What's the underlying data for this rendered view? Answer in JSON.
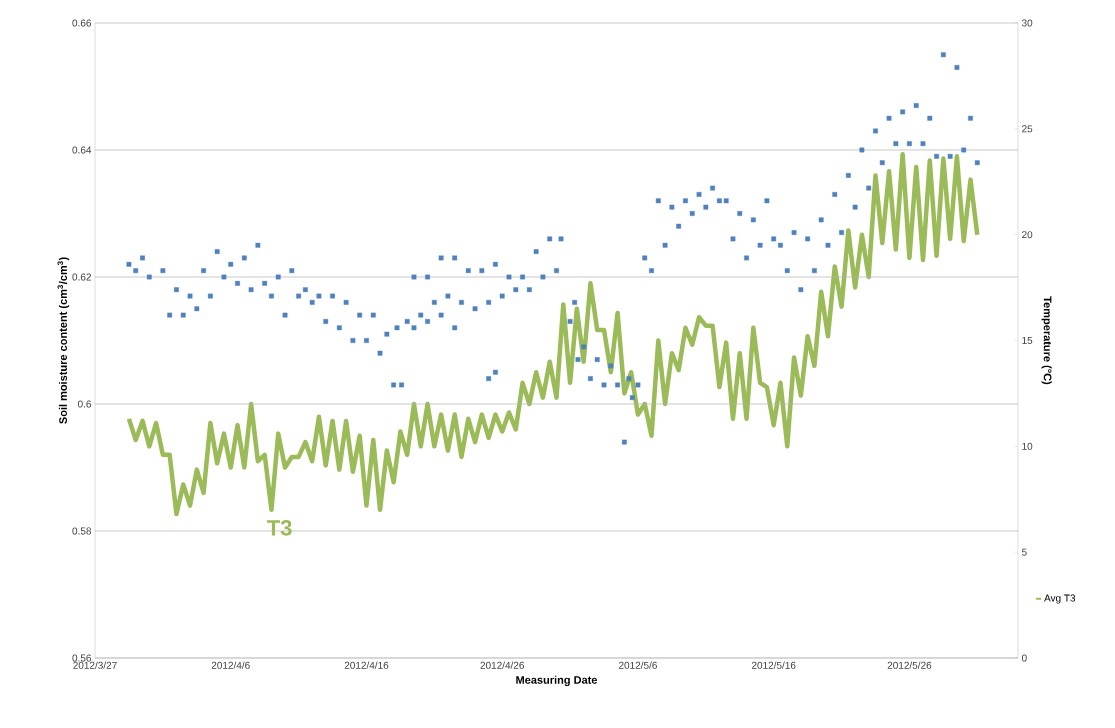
{
  "chart_data": {
    "type": "line",
    "xlabel": "Measuring Date",
    "ylabel": "Soil moisture content (cm$^{3}$/cm$^{3}$)",
    "y2label": "Temperature (°C)",
    "xlim": [
      "2012-03-27",
      "2012-06-03"
    ],
    "xticks": [
      {
        "value": "2012-03-27",
        "label": "2012/3/27"
      },
      {
        "value": "2012-04-06",
        "label": "2012/4/6"
      },
      {
        "value": "2012-04-16",
        "label": "2012/4/16"
      },
      {
        "value": "2012-04-26",
        "label": "2012/4/26"
      },
      {
        "value": "2012-05-06",
        "label": "2012/5/6"
      },
      {
        "value": "2012-05-16",
        "label": "2012/5/16"
      },
      {
        "value": "2012-05-26",
        "label": "2012/5/26"
      }
    ],
    "ylim": [
      0.56,
      0.66
    ],
    "yticks": [
      0.56,
      0.58,
      0.6,
      0.62,
      0.64,
      0.66
    ],
    "y2lim": [
      0,
      30
    ],
    "y2ticks": [
      0,
      5,
      10,
      15,
      20,
      25,
      30
    ],
    "grid": "y",
    "legend": "right",
    "annotations": [
      "T3"
    ],
    "series": [
      {
        "type": "scatter",
        "marker": "square",
        "color": "#4f81bd",
        "x": [
          "2012-03-29T12:00",
          "2012-03-30T00:00",
          "2012-03-30T12:00",
          "2012-03-31T00:00",
          "2012-04-01T00:00",
          "2012-04-01T12:00",
          "2012-04-02T00:00",
          "2012-04-02T12:00",
          "2012-04-03T00:00",
          "2012-04-03T12:00",
          "2012-04-04T00:00",
          "2012-04-04T12:00",
          "2012-04-05T00:00",
          "2012-04-05T12:00",
          "2012-04-06T00:00",
          "2012-04-06T12:00",
          "2012-04-07T00:00",
          "2012-04-07T12:00",
          "2012-04-08T00:00",
          "2012-04-08T12:00",
          "2012-04-09T00:00",
          "2012-04-09T12:00",
          "2012-04-10T00:00",
          "2012-04-10T12:00",
          "2012-04-11T00:00",
          "2012-04-11T12:00",
          "2012-04-12T00:00",
          "2012-04-12T12:00",
          "2012-04-13T00:00",
          "2012-04-13T12:00",
          "2012-04-14T00:00",
          "2012-04-14T12:00",
          "2012-04-15T00:00",
          "2012-04-15T12:00",
          "2012-04-16T00:00",
          "2012-04-16T12:00",
          "2012-04-17T00:00",
          "2012-04-17T12:00",
          "2012-04-18T00:00",
          "2012-04-18T06:00",
          "2012-04-18T14:00",
          "2012-04-19T00:00",
          "2012-04-19T12:00",
          "2012-04-20T00:00",
          "2012-04-20T12:00",
          "2012-04-21T00:00",
          "2012-04-21T12:00",
          "2012-04-22T00:00",
          "2012-04-22T12:00",
          "2012-04-23T00:00",
          "2012-04-23T12:00",
          "2012-04-24T00:00",
          "2012-04-24T12:00",
          "2012-04-25T00:00",
          "2012-04-25T12:00",
          "2012-04-26T00:00",
          "2012-04-26T12:00",
          "2012-04-27T00:00",
          "2012-04-27T12:00",
          "2012-04-28T00:00",
          "2012-04-28T12:00",
          "2012-04-29T00:00",
          "2012-04-29T12:00",
          "2012-04-30T00:00",
          "2012-04-30T08:00",
          "2012-04-19T12:00",
          "2012-04-20T12:00",
          "2012-04-21T12:00",
          "2012-04-22T12:00",
          "2012-04-25T00:00",
          "2012-04-25T12:00",
          "2012-05-01T00:00",
          "2012-05-01T08:00",
          "2012-05-01T14:00",
          "2012-05-02T00:00",
          "2012-05-02T12:00",
          "2012-05-03T00:00",
          "2012-05-03T12:00",
          "2012-05-04T00:00",
          "2012-05-04T12:00",
          "2012-05-05T00:00",
          "2012-05-05T08:00",
          "2012-05-05T14:00",
          "2012-05-06T00:00",
          "2012-05-06T12:00",
          "2012-05-07T00:00",
          "2012-05-07T12:00",
          "2012-05-08T00:00",
          "2012-05-08T12:00",
          "2012-05-09T00:00",
          "2012-05-09T12:00",
          "2012-05-10T00:00",
          "2012-05-10T12:00",
          "2012-05-11T00:00",
          "2012-05-11T12:00",
          "2012-05-12T00:00",
          "2012-05-12T12:00",
          "2012-05-13T00:00",
          "2012-05-13T12:00",
          "2012-05-14T00:00",
          "2012-05-14T12:00",
          "2012-05-15T00:00",
          "2012-05-15T12:00",
          "2012-05-16T00:00",
          "2012-05-16T12:00",
          "2012-05-17T00:00",
          "2012-05-17T12:00",
          "2012-05-18T00:00",
          "2012-05-18T12:00",
          "2012-05-19T00:00",
          "2012-05-19T12:00",
          "2012-05-20T00:00",
          "2012-05-20T12:00",
          "2012-05-21T00:00",
          "2012-05-21T12:00",
          "2012-05-22T00:00",
          "2012-05-22T12:00",
          "2012-05-23T00:00",
          "2012-05-23T12:00",
          "2012-05-24T00:00",
          "2012-05-24T12:00",
          "2012-05-25T00:00",
          "2012-05-25T12:00",
          "2012-05-26T00:00",
          "2012-05-26T12:00",
          "2012-05-27T00:00",
          "2012-05-27T12:00",
          "2012-05-28T00:00",
          "2012-05-28T12:00",
          "2012-05-29T00:00",
          "2012-05-29T12:00",
          "2012-05-30T00:00",
          "2012-05-30T12:00",
          "2012-05-31T00:00"
        ],
        "values": [
          0.622,
          0.621,
          0.623,
          0.62,
          0.621,
          0.614,
          0.618,
          0.614,
          0.617,
          0.615,
          0.621,
          0.617,
          0.624,
          0.62,
          0.622,
          0.619,
          0.623,
          0.618,
          0.625,
          0.619,
          0.617,
          0.62,
          0.614,
          0.621,
          0.617,
          0.618,
          0.616,
          0.617,
          0.613,
          0.617,
          0.612,
          0.616,
          0.61,
          0.614,
          0.61,
          0.614,
          0.608,
          0.611,
          0.603,
          0.612,
          0.603,
          0.613,
          0.62,
          0.614,
          0.62,
          0.616,
          0.623,
          0.617,
          0.623,
          0.616,
          0.621,
          0.615,
          0.621,
          0.616,
          0.622,
          0.617,
          0.62,
          0.618,
          0.62,
          0.618,
          0.624,
          0.62,
          0.626,
          0.621,
          0.626,
          0.612,
          0.613,
          0.614,
          0.612,
          0.604,
          0.605,
          0.613,
          0.616,
          0.607,
          0.609,
          0.604,
          0.607,
          0.603,
          0.606,
          0.603,
          0.594,
          0.604,
          0.601,
          0.603,
          0.623,
          0.621,
          0.632,
          0.625,
          0.631,
          0.628,
          0.632,
          0.63,
          0.633,
          0.631,
          0.634,
          0.632,
          0.632,
          0.626,
          0.63,
          0.623,
          0.629,
          0.625,
          0.632,
          0.626,
          0.625,
          0.621,
          0.627,
          0.618,
          0.626,
          0.621,
          0.629,
          0.625,
          0.633,
          0.627,
          0.636,
          0.631,
          0.64,
          0.634,
          0.643,
          0.638,
          0.645,
          0.641,
          0.646,
          0.641,
          0.647,
          0.641,
          0.645,
          0.639,
          0.655,
          0.639,
          0.653,
          0.64,
          0.645,
          0.638
        ]
      },
      {
        "name": "Avg T3",
        "axis": "y2",
        "color": "#9bbb59",
        "x": [
          "2012-03-29T12:00",
          "2012-03-30T00:00",
          "2012-03-30T12:00",
          "2012-03-31T00:00",
          "2012-03-31T12:00",
          "2012-04-01T00:00",
          "2012-04-01T12:00",
          "2012-04-02T00:00",
          "2012-04-02T12:00",
          "2012-04-03T00:00",
          "2012-04-03T12:00",
          "2012-04-04T00:00",
          "2012-04-04T12:00",
          "2012-04-05T00:00",
          "2012-04-05T12:00",
          "2012-04-06T00:00",
          "2012-04-06T12:00",
          "2012-04-07T00:00",
          "2012-04-07T12:00",
          "2012-04-08T00:00",
          "2012-04-08T12:00",
          "2012-04-09T00:00",
          "2012-04-09T12:00",
          "2012-04-10T00:00",
          "2012-04-10T12:00",
          "2012-04-11T00:00",
          "2012-04-11T12:00",
          "2012-04-12T00:00",
          "2012-04-12T12:00",
          "2012-04-13T00:00",
          "2012-04-13T12:00",
          "2012-04-14T00:00",
          "2012-04-14T12:00",
          "2012-04-15T00:00",
          "2012-04-15T12:00",
          "2012-04-16T00:00",
          "2012-04-16T12:00",
          "2012-04-17T00:00",
          "2012-04-17T12:00",
          "2012-04-18T00:00",
          "2012-04-18T12:00",
          "2012-04-19T00:00",
          "2012-04-19T12:00",
          "2012-04-20T00:00",
          "2012-04-20T12:00",
          "2012-04-21T00:00",
          "2012-04-21T12:00",
          "2012-04-22T00:00",
          "2012-04-22T12:00",
          "2012-04-23T00:00",
          "2012-04-23T12:00",
          "2012-04-24T00:00",
          "2012-04-24T12:00",
          "2012-04-25T00:00",
          "2012-04-25T12:00",
          "2012-04-26T00:00",
          "2012-04-26T12:00",
          "2012-04-27T00:00",
          "2012-04-27T12:00",
          "2012-04-28T00:00",
          "2012-04-28T12:00",
          "2012-04-29T00:00",
          "2012-04-29T12:00",
          "2012-04-30T00:00",
          "2012-04-30T12:00",
          "2012-05-01T00:00",
          "2012-05-01T12:00",
          "2012-05-02T00:00",
          "2012-05-02T12:00",
          "2012-05-03T00:00",
          "2012-05-03T12:00",
          "2012-05-04T00:00",
          "2012-05-04T12:00",
          "2012-05-05T00:00",
          "2012-05-05T12:00",
          "2012-05-06T00:00",
          "2012-05-06T12:00",
          "2012-05-07T00:00",
          "2012-05-07T12:00",
          "2012-05-08T00:00",
          "2012-05-08T12:00",
          "2012-05-09T00:00",
          "2012-05-09T12:00",
          "2012-05-10T00:00",
          "2012-05-10T12:00",
          "2012-05-11T00:00",
          "2012-05-11T12:00",
          "2012-05-12T00:00",
          "2012-05-12T12:00",
          "2012-05-13T00:00",
          "2012-05-13T12:00",
          "2012-05-14T00:00",
          "2012-05-14T12:00",
          "2012-05-15T00:00",
          "2012-05-15T12:00",
          "2012-05-16T00:00",
          "2012-05-16T12:00",
          "2012-05-17T00:00",
          "2012-05-17T12:00",
          "2012-05-18T00:00",
          "2012-05-18T12:00",
          "2012-05-19T00:00",
          "2012-05-19T12:00",
          "2012-05-20T00:00",
          "2012-05-20T12:00",
          "2012-05-21T00:00",
          "2012-05-21T12:00",
          "2012-05-22T00:00",
          "2012-05-22T12:00",
          "2012-05-23T00:00",
          "2012-05-23T12:00",
          "2012-05-24T00:00",
          "2012-05-24T12:00",
          "2012-05-25T00:00",
          "2012-05-25T12:00",
          "2012-05-26T00:00",
          "2012-05-26T12:00",
          "2012-05-27T00:00",
          "2012-05-27T12:00",
          "2012-05-28T00:00",
          "2012-05-28T12:00",
          "2012-05-29T00:00",
          "2012-05-29T12:00",
          "2012-05-30T00:00",
          "2012-05-30T12:00",
          "2012-05-31T00:00"
        ],
        "values": [
          11.3,
          10.3,
          11.2,
          10,
          11.1,
          9.6,
          9.6,
          6.8,
          8.2,
          7.2,
          8.9,
          7.8,
          11.1,
          9.2,
          10.6,
          9,
          11,
          9,
          12,
          9.3,
          9.6,
          7,
          10.6,
          9,
          9.5,
          9.5,
          10.2,
          9.3,
          11.4,
          9.1,
          11.2,
          8.9,
          11.2,
          8.8,
          10.5,
          7.2,
          10.3,
          7,
          9.8,
          8.3,
          10.7,
          9.6,
          12,
          10,
          12,
          10,
          11.5,
          9.8,
          11.5,
          9.5,
          11.3,
          10.2,
          11.5,
          10.4,
          11.5,
          10.7,
          11.6,
          10.8,
          13,
          12,
          13.5,
          12.3,
          14,
          12.3,
          16.7,
          13,
          16.5,
          14,
          17.7,
          15.5,
          15.5,
          13.5,
          16.3,
          12.5,
          13.5,
          11.5,
          12,
          10.5,
          15,
          12,
          14.4,
          13.6,
          15.6,
          14.8,
          16.1,
          15.7,
          15.7,
          12.8,
          14.9,
          11.3,
          14.4,
          11.3,
          15.6,
          13,
          12.8,
          11,
          13,
          10,
          14.2,
          12.4,
          15.2,
          13.8,
          17.3,
          15.2,
          18.5,
          16.6,
          20.2,
          17.5,
          20,
          18,
          22.8,
          19.6,
          23,
          19.3,
          23.8,
          18.9,
          23.2,
          18.8,
          23.5,
          19,
          23.6,
          19.8,
          23.7,
          19.7,
          22.6,
          20
        ]
      }
    ]
  }
}
